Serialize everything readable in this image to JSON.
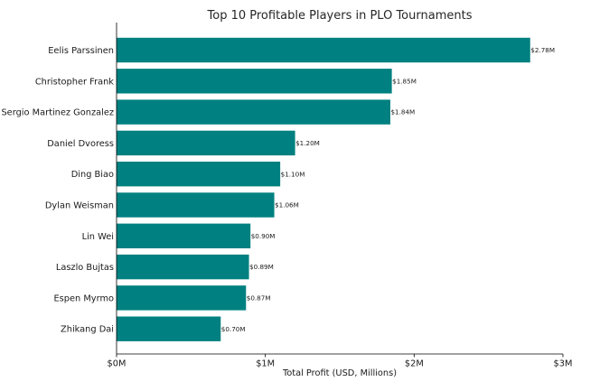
{
  "chart_data": {
    "type": "bar",
    "orientation": "horizontal",
    "title": "Top 10 Profitable Players in PLO Tournaments",
    "xlabel": "Total Profit (USD, Millions)",
    "ylabel": "",
    "categories": [
      "Eelis Parssinen",
      "Christopher Frank",
      "Sergio Martinez Gonzalez",
      "Daniel Dvoress",
      "Ding Biao",
      "Dylan Weisman",
      "Lin Wei",
      "Laszlo Bujtas",
      "Espen Myrmo",
      "Zhikang Dai"
    ],
    "values": [
      2.78,
      1.85,
      1.84,
      1.2,
      1.1,
      1.06,
      0.9,
      0.89,
      0.87,
      0.7
    ],
    "value_labels": [
      "$2.78M",
      "$1.85M",
      "$1.84M",
      "$1.20M",
      "$1.10M",
      "$1.06M",
      "$0.90M",
      "$0.89M",
      "$0.87M",
      "$0.70M"
    ],
    "xlim": [
      0,
      3
    ],
    "xticks": [
      0,
      1,
      2,
      3
    ],
    "xtick_labels": [
      "$0M",
      "$1M",
      "$2M",
      "$3M"
    ],
    "bar_color": "#008080",
    "grid": false,
    "legend": "none"
  }
}
